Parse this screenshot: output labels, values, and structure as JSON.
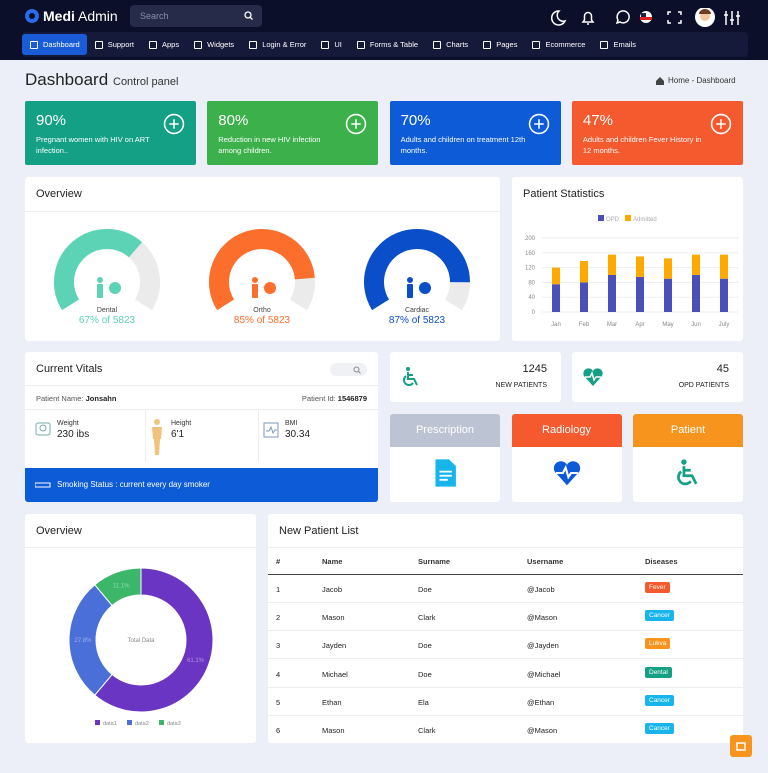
{
  "header": {
    "logo_first": "Medi",
    "logo_second": "Admin",
    "search_placeholder": "Search"
  },
  "nav": [
    "Dashboard",
    "Support",
    "Apps",
    "Widgets",
    "Login & Error",
    "UI",
    "Forms & Table",
    "Charts",
    "Pages",
    "Ecommerce",
    "Emails"
  ],
  "page": {
    "title": "Dashboard",
    "subtitle": "Control panel",
    "breadcrumb": [
      "Home",
      "Dashboard"
    ],
    "breadcrumb_separator": "-"
  },
  "stat_cards": [
    {
      "value": "90%",
      "text": "Pregnant women with HIV on ART infection..",
      "color": "#14a085"
    },
    {
      "value": "80%",
      "text": "Reduction in new HIV infection among children.",
      "color": "#3cb04a"
    },
    {
      "value": "70%",
      "text": "Adults and children on treatment 12th months.",
      "color": "#0d5bd6"
    },
    {
      "value": "47%",
      "text": "Adults and children Fever History in 12 months.",
      "color": "#f5592e"
    }
  ],
  "overview": {
    "title": "Overview",
    "gauges": [
      {
        "label": "Dental",
        "value": 67,
        "caption": "67% of 5823",
        "color": "#5dd3b6"
      },
      {
        "label": "Ortho",
        "value": 85,
        "caption": "85% of 5823",
        "color": "#fb6e2b"
      },
      {
        "label": "Cardiac",
        "value": 87,
        "caption": "87% of 5823",
        "color": "#0a4fc9"
      }
    ]
  },
  "patient_statistics": {
    "type": "bar",
    "stacked": true,
    "title": "Patient Statistics",
    "categories": [
      "Jan",
      "Feb",
      "Mar",
      "Apr",
      "May",
      "Jun",
      "July"
    ],
    "series": [
      {
        "name": "OPD",
        "color": "#4b4fb8",
        "values": [
          75,
          80,
          100,
          95,
          90,
          100,
          90
        ]
      },
      {
        "name": "Admitted",
        "color": "#ffa800",
        "values": [
          45,
          58,
          55,
          55,
          55,
          55,
          65
        ]
      }
    ],
    "ylim": [
      0,
      200
    ],
    "yticks": [
      0,
      40,
      80,
      120,
      160,
      200
    ],
    "grid": true
  },
  "vitals": {
    "title": "Current Vitals",
    "patient_name_label": "Patient Name:",
    "patient_name": "Jonsahn",
    "patient_id_label": "Patient Id:",
    "patient_id": "1546879",
    "metrics": [
      {
        "label": "Weight",
        "value": "230 ibs"
      },
      {
        "label": "Height",
        "value": "6'1"
      },
      {
        "label": "BMI",
        "value": "30.34"
      }
    ],
    "smoking": "Smoking Status : current every day smoker"
  },
  "counts": [
    {
      "value": 1245,
      "label": "NEW PATIENTS"
    },
    {
      "value": 45,
      "label": "OPD PATIENTS"
    }
  ],
  "tiles": [
    {
      "label": "Prescription",
      "color": "#bcc3d2"
    },
    {
      "label": "Radiology",
      "color": "#f5592e"
    },
    {
      "label": "Patient",
      "color": "#f7941d"
    }
  ],
  "donut": {
    "type": "donut",
    "title": "Overview",
    "center_label": "Total Data",
    "series": [
      {
        "name": "data1",
        "value": 61.1,
        "value_label": "61.1%",
        "color": "#6a35c2"
      },
      {
        "name": "data2",
        "value": 27.8,
        "value_label": "27.8%",
        "color": "#4a6fd8"
      },
      {
        "name": "data3",
        "value": 11.1,
        "value_label": "11.1%",
        "color": "#3cb76a"
      }
    ]
  },
  "patient_list": {
    "title": "New Patient List",
    "columns": [
      "#",
      "Name",
      "Surname",
      "Username",
      "Diseases"
    ],
    "rows": [
      {
        "no": 1,
        "name": "Jacob",
        "surname": "Doe",
        "username": "@Jacob",
        "disease": "Fever",
        "color": "#f5592e"
      },
      {
        "no": 2,
        "name": "Mason",
        "surname": "Clark",
        "username": "@Mason",
        "disease": "Cancer",
        "color": "#17b5ec"
      },
      {
        "no": 3,
        "name": "Jayden",
        "surname": "Doe",
        "username": "@Jayden",
        "disease": "Lukva",
        "color": "#f7941d"
      },
      {
        "no": 4,
        "name": "Michael",
        "surname": "Doe",
        "username": "@Michael",
        "disease": "Dental",
        "color": "#14a085"
      },
      {
        "no": 5,
        "name": "Ethan",
        "surname": "Ela",
        "username": "@Ethan",
        "disease": "Cancer",
        "color": "#17b5ec"
      },
      {
        "no": 6,
        "name": "Mason",
        "surname": "Clark",
        "username": "@Mason",
        "disease": "Cancer",
        "color": "#17b5ec"
      }
    ]
  }
}
